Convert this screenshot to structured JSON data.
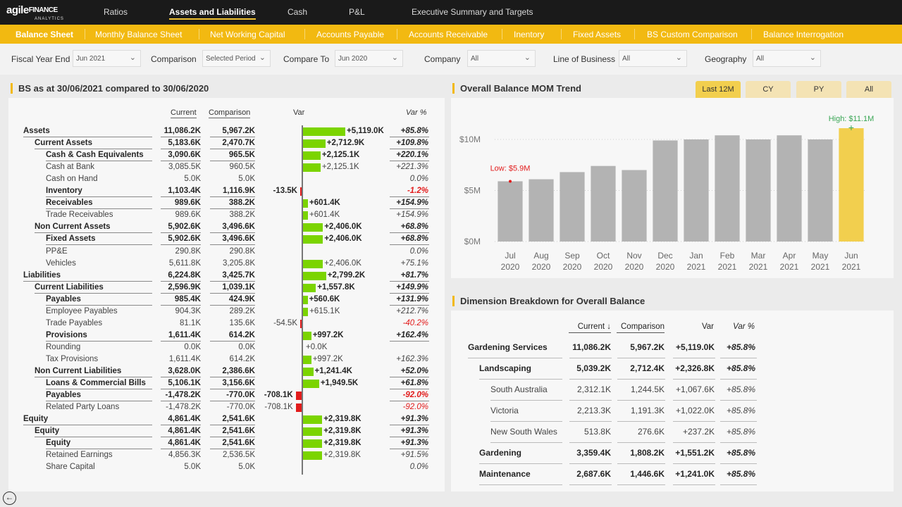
{
  "logo": {
    "text_main": "agile",
    "text_accent": "FINANCE",
    "text_sub": "ANALYTICS"
  },
  "top_nav": [
    "Ratios",
    "Assets and Liabilities",
    "Cash",
    "P&L",
    "Executive Summary and Targets"
  ],
  "sub_nav": [
    "Balance Sheet",
    "Monthly Balance Sheet",
    "Net Working Capital",
    "Accounts Payable",
    "Accounts Receivable",
    "Inentory",
    "Fixed Assets",
    "BS Custom Comparison",
    "Balance Interrogation"
  ],
  "filters": {
    "fiscal_year_end": {
      "label": "Fiscal Year End",
      "value": "Jun 2021"
    },
    "comparison": {
      "label": "Comparison",
      "value": "Selected Period"
    },
    "compare_to": {
      "label": "Compare To",
      "value": "Jun 2020"
    },
    "company": {
      "label": "Company",
      "value": "All"
    },
    "line_of_business": {
      "label": "Line of Business",
      "value": "All"
    },
    "geography": {
      "label": "Geography",
      "value": "All"
    }
  },
  "bs": {
    "title": "BS as at 30/06/2021 compared to 30/06/2020",
    "headers": {
      "current": "Current",
      "comparison": "Comparison",
      "var": "Var",
      "var_pct": "Var %"
    },
    "rows": [
      {
        "label": "Assets",
        "level": 0,
        "bold": true,
        "current": "11,086.2K",
        "comparison": "5,967.2K",
        "var": "+5,119.0K",
        "var_value": 5119.0,
        "var_pct": "+85.8%"
      },
      {
        "label": "Current Assets",
        "level": 1,
        "bold": true,
        "current": "5,183.6K",
        "comparison": "2,470.7K",
        "var": "+2,712.9K",
        "var_value": 2712.9,
        "var_pct": "+109.8%"
      },
      {
        "label": "Cash & Cash Equivalents",
        "level": 2,
        "bold": true,
        "current": "3,090.6K",
        "comparison": "965.5K",
        "var": "+2,125.1K",
        "var_value": 2125.1,
        "var_pct": "+220.1%"
      },
      {
        "label": "Cash at Bank",
        "level": 2,
        "bold": false,
        "current": "3,085.5K",
        "comparison": "960.5K",
        "var": "+2,125.1K",
        "var_value": 2125.1,
        "var_pct": "+221.3%"
      },
      {
        "label": "Cash on Hand",
        "level": 2,
        "bold": false,
        "current": "5.0K",
        "comparison": "5.0K",
        "var": "",
        "var_value": 0,
        "var_pct": "0.0%"
      },
      {
        "label": "Inventory",
        "level": 2,
        "bold": true,
        "current": "1,103.4K",
        "comparison": "1,116.9K",
        "var": "-13.5K",
        "var_value": -13.5,
        "var_pct": "-1.2%"
      },
      {
        "label": "Receivables",
        "level": 2,
        "bold": true,
        "current": "989.6K",
        "comparison": "388.2K",
        "var": "+601.4K",
        "var_value": 601.4,
        "var_pct": "+154.9%"
      },
      {
        "label": "Trade Receivables",
        "level": 2,
        "bold": false,
        "current": "989.6K",
        "comparison": "388.2K",
        "var": "+601.4K",
        "var_value": 601.4,
        "var_pct": "+154.9%"
      },
      {
        "label": "Non Current Assets",
        "level": 1,
        "bold": true,
        "current": "5,902.6K",
        "comparison": "3,496.6K",
        "var": "+2,406.0K",
        "var_value": 2406.0,
        "var_pct": "+68.8%"
      },
      {
        "label": "Fixed Assets",
        "level": 2,
        "bold": true,
        "current": "5,902.6K",
        "comparison": "3,496.6K",
        "var": "+2,406.0K",
        "var_value": 2406.0,
        "var_pct": "+68.8%"
      },
      {
        "label": "PP&E",
        "level": 2,
        "bold": false,
        "current": "290.8K",
        "comparison": "290.8K",
        "var": "",
        "var_value": 0,
        "var_pct": "0.0%"
      },
      {
        "label": "Vehicles",
        "level": 2,
        "bold": false,
        "current": "5,611.8K",
        "comparison": "3,205.8K",
        "var": "+2,406.0K",
        "var_value": 2406.0,
        "var_pct": "+75.1%"
      },
      {
        "label": "Liabilities",
        "level": 0,
        "bold": true,
        "current": "6,224.8K",
        "comparison": "3,425.7K",
        "var": "+2,799.2K",
        "var_value": 2799.2,
        "var_pct": "+81.7%"
      },
      {
        "label": "Current Liabilities",
        "level": 1,
        "bold": true,
        "current": "2,596.9K",
        "comparison": "1,039.1K",
        "var": "+1,557.8K",
        "var_value": 1557.8,
        "var_pct": "+149.9%"
      },
      {
        "label": "Payables",
        "level": 2,
        "bold": true,
        "current": "985.4K",
        "comparison": "424.9K",
        "var": "+560.6K",
        "var_value": 560.6,
        "var_pct": "+131.9%"
      },
      {
        "label": "Employee Payables",
        "level": 2,
        "bold": false,
        "current": "904.3K",
        "comparison": "289.2K",
        "var": "+615.1K",
        "var_value": 615.1,
        "var_pct": "+212.7%"
      },
      {
        "label": "Trade Payables",
        "level": 2,
        "bold": false,
        "current": "81.1K",
        "comparison": "135.6K",
        "var": "-54.5K",
        "var_value": -54.5,
        "var_pct": "-40.2%"
      },
      {
        "label": "Provisions",
        "level": 2,
        "bold": true,
        "current": "1,611.4K",
        "comparison": "614.2K",
        "var": "+997.2K",
        "var_value": 997.2,
        "var_pct": "+162.4%"
      },
      {
        "label": "Rounding",
        "level": 2,
        "bold": false,
        "current": "0.0K",
        "comparison": "0.0K",
        "var": "+0.0K",
        "var_value": 0,
        "var_pct": ""
      },
      {
        "label": "Tax Provisions",
        "level": 2,
        "bold": false,
        "current": "1,611.4K",
        "comparison": "614.2K",
        "var": "+997.2K",
        "var_value": 997.2,
        "var_pct": "+162.3%"
      },
      {
        "label": "Non Current Liabilities",
        "level": 1,
        "bold": true,
        "current": "3,628.0K",
        "comparison": "2,386.6K",
        "var": "+1,241.4K",
        "var_value": 1241.4,
        "var_pct": "+52.0%"
      },
      {
        "label": "Loans & Commercial Bills",
        "level": 2,
        "bold": true,
        "current": "5,106.1K",
        "comparison": "3,156.6K",
        "var": "+1,949.5K",
        "var_value": 1949.5,
        "var_pct": "+61.8%"
      },
      {
        "label": "Payables",
        "level": 2,
        "bold": true,
        "current": "-1,478.2K",
        "comparison": "-770.0K",
        "var": "-708.1K",
        "var_value": -708.1,
        "var_pct": "-92.0%"
      },
      {
        "label": "Related Party Loans",
        "level": 2,
        "bold": false,
        "current": "-1,478.2K",
        "comparison": "-770.0K",
        "var": "-708.1K",
        "var_value": -708.1,
        "var_pct": "-92.0%"
      },
      {
        "label": "Equity",
        "level": 0,
        "bold": true,
        "current": "4,861.4K",
        "comparison": "2,541.6K",
        "var": "+2,319.8K",
        "var_value": 2319.8,
        "var_pct": "+91.3%"
      },
      {
        "label": "Equity",
        "level": 1,
        "bold": true,
        "current": "4,861.4K",
        "comparison": "2,541.6K",
        "var": "+2,319.8K",
        "var_value": 2319.8,
        "var_pct": "+91.3%"
      },
      {
        "label": "Equity",
        "level": 2,
        "bold": true,
        "current": "4,861.4K",
        "comparison": "2,541.6K",
        "var": "+2,319.8K",
        "var_value": 2319.8,
        "var_pct": "+91.3%"
      },
      {
        "label": "Retained Earnings",
        "level": 2,
        "bold": false,
        "current": "4,856.3K",
        "comparison": "2,536.5K",
        "var": "+2,319.8K",
        "var_value": 2319.8,
        "var_pct": "+91.5%"
      },
      {
        "label": "Share Capital",
        "level": 2,
        "bold": false,
        "current": "5.0K",
        "comparison": "5.0K",
        "var": "",
        "var_value": 0,
        "var_pct": "0.0%"
      }
    ]
  },
  "trend": {
    "title": "Overall Balance MOM Trend",
    "tabs": [
      "Last 12M",
      "CY",
      "PY",
      "All"
    ],
    "active_tab": "Last 12M",
    "high_label": "High: $11.1M",
    "low_label": "Low: $5.9M",
    "bar_color": "#b3b3b3",
    "highlight_color": "#f2cf4e"
  },
  "chart_data": {
    "type": "bar",
    "title": "Overall Balance MOM Trend",
    "categories": [
      "Jul 2020",
      "Aug 2020",
      "Sep 2020",
      "Oct 2020",
      "Nov 2020",
      "Dec 2020",
      "Jan 2021",
      "Feb 2021",
      "Mar 2021",
      "Apr 2021",
      "May 2021",
      "Jun 2021"
    ],
    "category_lines": [
      [
        "Jul",
        "2020"
      ],
      [
        "Aug",
        "2020"
      ],
      [
        "Sep",
        "2020"
      ],
      [
        "Oct",
        "2020"
      ],
      [
        "Nov",
        "2020"
      ],
      [
        "Dec",
        "2020"
      ],
      [
        "Jan",
        "2021"
      ],
      [
        "Feb",
        "2021"
      ],
      [
        "Mar",
        "2021"
      ],
      [
        "Apr",
        "2021"
      ],
      [
        "May",
        "2021"
      ],
      [
        "Jun",
        "2021"
      ]
    ],
    "values": [
      5.9,
      6.1,
      6.8,
      7.4,
      7.0,
      9.9,
      10.0,
      10.4,
      10.0,
      10.4,
      10.0,
      11.1
    ],
    "unit": "$M",
    "yticks": [
      {
        "v": 0,
        "label": "$0M"
      },
      {
        "v": 5,
        "label": "$5M"
      },
      {
        "v": 10,
        "label": "$10M"
      }
    ],
    "ylim": [
      0,
      12
    ],
    "highlight_index": 11
  },
  "dims": {
    "title": "Dimension Breakdown for Overall Balance",
    "headers": {
      "current": "Current",
      "sort_icon": "↓",
      "comparison": "Comparison",
      "var": "Var",
      "var_pct": "Var %"
    },
    "rows": [
      {
        "label": "Gardening Services",
        "level": 0,
        "bold": true,
        "current": "11,086.2K",
        "comparison": "5,967.2K",
        "var": "+5,119.0K",
        "var_pct": "+85.8%"
      },
      {
        "label": "Landscaping",
        "level": 1,
        "bold": true,
        "current": "5,039.2K",
        "comparison": "2,712.4K",
        "var": "+2,326.8K",
        "var_pct": "+85.8%"
      },
      {
        "label": "South Australia",
        "level": 2,
        "bold": false,
        "current": "2,312.1K",
        "comparison": "1,244.5K",
        "var": "+1,067.6K",
        "var_pct": "+85.8%"
      },
      {
        "label": "Victoria",
        "level": 2,
        "bold": false,
        "current": "2,213.3K",
        "comparison": "1,191.3K",
        "var": "+1,022.0K",
        "var_pct": "+85.8%"
      },
      {
        "label": "New South Wales",
        "level": 2,
        "bold": false,
        "current": "513.8K",
        "comparison": "276.6K",
        "var": "+237.2K",
        "var_pct": "+85.8%"
      },
      {
        "label": "Gardening",
        "level": 1,
        "bold": true,
        "current": "3,359.4K",
        "comparison": "1,808.2K",
        "var": "+1,551.2K",
        "var_pct": "+85.8%"
      },
      {
        "label": "Maintenance",
        "level": 1,
        "bold": true,
        "current": "2,687.6K",
        "comparison": "1,446.6K",
        "var": "+1,241.0K",
        "var_pct": "+85.8%"
      }
    ]
  },
  "colors": {
    "accent": "#f2b911",
    "positive": "#7bd400",
    "negative": "#e21b1b"
  },
  "icons": {
    "back": "back-arrow-icon",
    "dropdown": "chevron-down-icon"
  }
}
